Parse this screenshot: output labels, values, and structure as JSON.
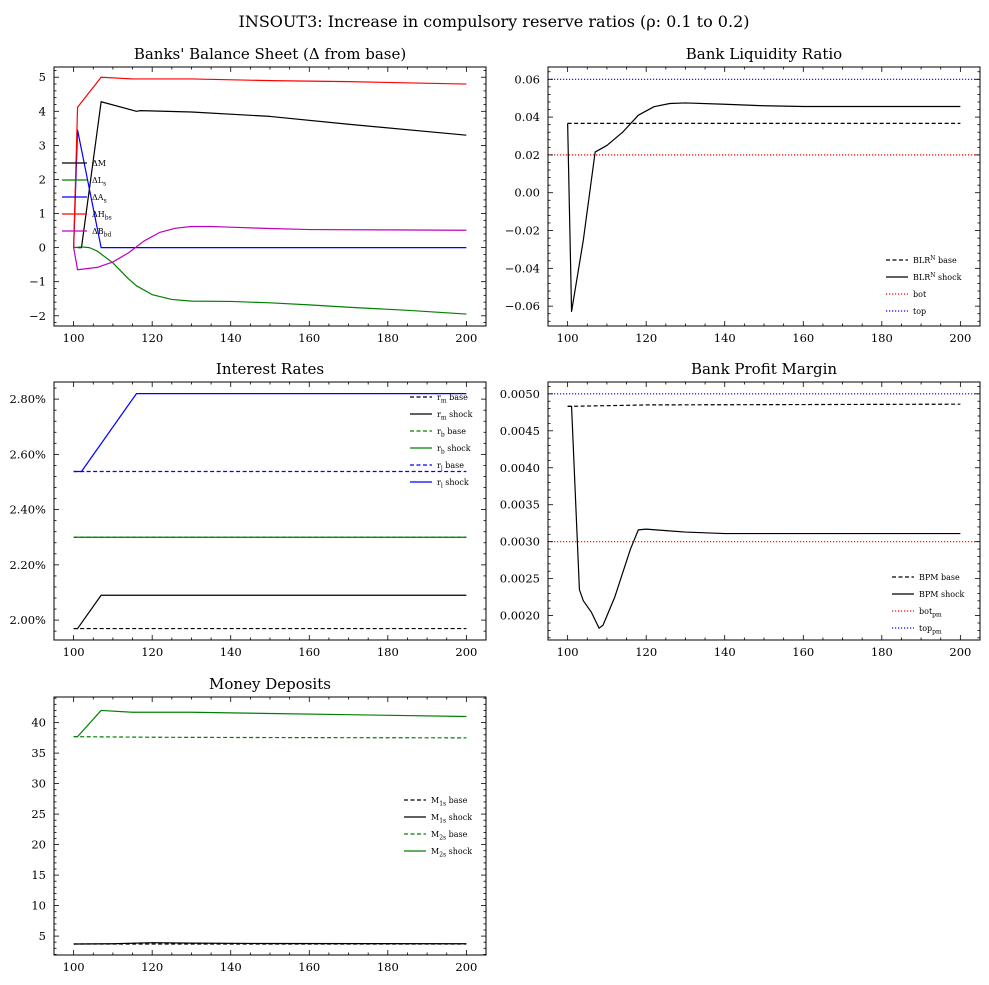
{
  "figure": {
    "suptitle": "INSOUT3: Increase in compulsory reserve ratios (ρ: 0.1 to 0.2)"
  },
  "chart_data": [
    {
      "id": "balance",
      "type": "line",
      "title": "Banks' Balance Sheet (Δ from base)",
      "xlim": [
        95,
        205
      ],
      "ylim": [
        -2.3,
        5.3
      ],
      "xticks": [
        100,
        120,
        140,
        160,
        180,
        200
      ],
      "yticks": [
        -2,
        -1,
        0,
        1,
        2,
        3,
        4,
        5
      ],
      "ytick_labels": [
        "−2",
        "−1",
        "0",
        "1",
        "2",
        "3",
        "4",
        "5"
      ],
      "legend": "left",
      "series": [
        {
          "name": "ΔM",
          "color": "#000000",
          "dash": "solid",
          "points": [
            [
              101,
              0
            ],
            [
              102,
              0
            ],
            [
              107,
              4.28
            ],
            [
              116,
              4.0
            ],
            [
              117,
              4.02
            ],
            [
              130,
              3.98
            ],
            [
              150,
              3.85
            ],
            [
              170,
              3.62
            ],
            [
              200,
              3.3
            ]
          ]
        },
        {
          "name": "ΔL_s",
          "color": "#008000",
          "dash": "solid",
          "points": [
            [
              100,
              0
            ],
            [
              102,
              0.02
            ],
            [
              104,
              0
            ],
            [
              106,
              -0.1
            ],
            [
              110,
              -0.45
            ],
            [
              114,
              -0.92
            ],
            [
              116,
              -1.12
            ],
            [
              120,
              -1.38
            ],
            [
              125,
              -1.52
            ],
            [
              130,
              -1.57
            ],
            [
              140,
              -1.58
            ],
            [
              150,
              -1.62
            ],
            [
              160,
              -1.68
            ],
            [
              170,
              -1.75
            ],
            [
              185,
              -1.84
            ],
            [
              200,
              -1.95
            ]
          ]
        },
        {
          "name": "ΔA_s",
          "color": "#0000ff",
          "dash": "solid",
          "points": [
            [
              100,
              0
            ],
            [
              101,
              3.45
            ],
            [
              107,
              0
            ],
            [
              200,
              0
            ]
          ]
        },
        {
          "name": "ΔH_bs",
          "color": "#ff0000",
          "dash": "solid",
          "points": [
            [
              100,
              0
            ],
            [
              101,
              4.12
            ],
            [
              107,
              5.0
            ],
            [
              115,
              4.95
            ],
            [
              130,
              4.95
            ],
            [
              150,
              4.9
            ],
            [
              170,
              4.87
            ],
            [
              200,
              4.8
            ]
          ]
        },
        {
          "name": "ΔB_bd",
          "color": "#bf00bf",
          "dash": "solid",
          "points": [
            [
              100,
              0
            ],
            [
              101,
              -0.65
            ],
            [
              106,
              -0.58
            ],
            [
              110,
              -0.42
            ],
            [
              114,
              -0.15
            ],
            [
              118,
              0.2
            ],
            [
              122,
              0.45
            ],
            [
              126,
              0.57
            ],
            [
              130,
              0.62
            ],
            [
              135,
              0.62
            ],
            [
              140,
              0.6
            ],
            [
              150,
              0.56
            ],
            [
              160,
              0.53
            ],
            [
              180,
              0.52
            ],
            [
              200,
              0.51
            ]
          ]
        }
      ]
    },
    {
      "id": "liquidity",
      "type": "line",
      "title": "Bank Liquidity Ratio",
      "xlim": [
        95,
        205
      ],
      "ylim": [
        -0.0705,
        0.0665
      ],
      "xticks": [
        100,
        120,
        140,
        160,
        180,
        200
      ],
      "yticks": [
        -0.06,
        -0.04,
        -0.02,
        0.0,
        0.02,
        0.04,
        0.06
      ],
      "ytick_labels": [
        "−0.06",
        "−0.04",
        "−0.02",
        "0.00",
        "0.02",
        "0.04",
        "0.06"
      ],
      "legend": "bottom-right",
      "series": [
        {
          "name": "BLR^N base",
          "color": "#000000",
          "dash": "dashed",
          "points": [
            [
              100,
              0.0367
            ],
            [
              200,
              0.0367
            ]
          ]
        },
        {
          "name": "BLR^N shock",
          "color": "#000000",
          "dash": "solid",
          "points": [
            [
              100,
              0.0367
            ],
            [
              101,
              -0.0628
            ],
            [
              104,
              -0.025
            ],
            [
              107,
              0.0215
            ],
            [
              110,
              0.025
            ],
            [
              114,
              0.032
            ],
            [
              118,
              0.041
            ],
            [
              122,
              0.0455
            ],
            [
              126,
              0.0472
            ],
            [
              130,
              0.0475
            ],
            [
              140,
              0.0468
            ],
            [
              150,
              0.046
            ],
            [
              160,
              0.0456
            ],
            [
              200,
              0.0456
            ]
          ]
        },
        {
          "name": "bot",
          "color": "#ff0000",
          "dash": "dotted",
          "points": [
            [
              95,
              0.02
            ],
            [
              205,
              0.02
            ]
          ]
        },
        {
          "name": "top",
          "color": "#0000ff",
          "dash": "dotted",
          "points": [
            [
              95,
              0.06
            ],
            [
              205,
              0.06
            ]
          ]
        }
      ]
    },
    {
      "id": "rates",
      "type": "line",
      "title": "Interest Rates",
      "xlim": [
        95,
        205
      ],
      "ylim": [
        0.01928,
        0.02862
      ],
      "xticks": [
        100,
        120,
        140,
        160,
        180,
        200
      ],
      "yticks": [
        0.02,
        0.022,
        0.024,
        0.026,
        0.028
      ],
      "ytick_labels": [
        "2.00%",
        "2.20%",
        "2.40%",
        "2.60%",
        "2.80%"
      ],
      "legend": "top-right",
      "series": [
        {
          "name": "r_m base",
          "color": "#000000",
          "dash": "dashed",
          "points": [
            [
              100,
              0.019695
            ],
            [
              200,
              0.019695
            ]
          ]
        },
        {
          "name": "r_m shock",
          "color": "#000000",
          "dash": "solid",
          "points": [
            [
              100,
              0.019695
            ],
            [
              101,
              0.019695
            ],
            [
              107,
              0.0209
            ],
            [
              200,
              0.0209
            ]
          ]
        },
        {
          "name": "r_b base",
          "color": "#008000",
          "dash": "dashed",
          "points": [
            [
              100,
              0.023
            ],
            [
              200,
              0.023
            ]
          ]
        },
        {
          "name": "r_b shock",
          "color": "#008000",
          "dash": "solid",
          "points": [
            [
              100,
              0.023
            ],
            [
              200,
              0.023
            ]
          ]
        },
        {
          "name": "r_l base",
          "color": "#0000ff",
          "dash": "dashed",
          "points": [
            [
              100,
              0.02538
            ],
            [
              200,
              0.02538
            ]
          ]
        },
        {
          "name": "r_l shock",
          "color": "#0000ff",
          "dash": "solid",
          "points": [
            [
              100,
              0.02538
            ],
            [
              102,
              0.02538
            ],
            [
              116,
              0.0282
            ],
            [
              200,
              0.0282
            ]
          ]
        }
      ]
    },
    {
      "id": "profit",
      "type": "line",
      "title": "Bank Profit Margin",
      "xlim": [
        95,
        205
      ],
      "ylim": [
        0.00167,
        0.00516
      ],
      "xticks": [
        100,
        120,
        140,
        160,
        180,
        200
      ],
      "yticks": [
        0.002,
        0.0025,
        0.003,
        0.0035,
        0.004,
        0.0045,
        0.005
      ],
      "ytick_labels": [
        "0.0020",
        "0.0025",
        "0.0030",
        "0.0035",
        "0.0040",
        "0.0045",
        "0.0050"
      ],
      "legend": "bottom-right",
      "series": [
        {
          "name": "BPM base",
          "color": "#000000",
          "dash": "dashed",
          "points": [
            [
              100,
              0.00483
            ],
            [
              120,
              0.00485
            ],
            [
              200,
              0.00486
            ]
          ]
        },
        {
          "name": "BPM shock",
          "color": "#000000",
          "dash": "solid",
          "points": [
            [
              100,
              0.00483
            ],
            [
              101,
              0.00483
            ],
            [
              103,
              0.00235
            ],
            [
              104,
              0.0022
            ],
            [
              106,
              0.00205
            ],
            [
              108,
              0.00183
            ],
            [
              109,
              0.00187
            ],
            [
              112,
              0.00225
            ],
            [
              116,
              0.0029
            ],
            [
              118,
              0.00316
            ],
            [
              120,
              0.00317
            ],
            [
              125,
              0.00315
            ],
            [
              130,
              0.00313
            ],
            [
              140,
              0.00311
            ],
            [
              160,
              0.00311
            ],
            [
              200,
              0.00311
            ]
          ]
        },
        {
          "name": "bot_pm",
          "color": "#ff0000",
          "dash": "dotted",
          "points": [
            [
              95,
              0.003
            ],
            [
              205,
              0.003
            ]
          ]
        },
        {
          "name": "top_pm",
          "color": "#0000ff",
          "dash": "dotted",
          "points": [
            [
              95,
              0.005
            ],
            [
              205,
              0.005
            ]
          ]
        }
      ]
    },
    {
      "id": "money",
      "type": "line",
      "title": "Money Deposits",
      "xlim": [
        95,
        205
      ],
      "ylim": [
        1.9,
        44.2
      ],
      "xticks": [
        100,
        120,
        140,
        160,
        180,
        200
      ],
      "yticks": [
        5,
        10,
        15,
        20,
        25,
        30,
        35,
        40
      ],
      "ytick_labels": [
        "5",
        "10",
        "15",
        "20",
        "25",
        "30",
        "35",
        "40"
      ],
      "legend": "right",
      "series": [
        {
          "name": "M_1s base",
          "color": "#000000",
          "dash": "dashed",
          "points": [
            [
              100,
              3.7
            ],
            [
              200,
              3.7
            ]
          ]
        },
        {
          "name": "M_1s shock",
          "color": "#000000",
          "dash": "solid",
          "points": [
            [
              100,
              3.7
            ],
            [
              110,
              3.75
            ],
            [
              120,
              3.92
            ],
            [
              130,
              3.85
            ],
            [
              150,
              3.78
            ],
            [
              200,
              3.75
            ]
          ]
        },
        {
          "name": "M_2s base",
          "color": "#008000",
          "dash": "dashed",
          "points": [
            [
              100,
              37.7
            ],
            [
              120,
              37.6
            ],
            [
              150,
              37.55
            ],
            [
              200,
              37.5
            ]
          ]
        },
        {
          "name": "M_2s shock",
          "color": "#008000",
          "dash": "solid",
          "points": [
            [
              100,
              37.7
            ],
            [
              101,
              37.7
            ],
            [
              107,
              42.0
            ],
            [
              115,
              41.7
            ],
            [
              130,
              41.7
            ],
            [
              150,
              41.5
            ],
            [
              170,
              41.3
            ],
            [
              200,
              41.0
            ]
          ]
        }
      ]
    }
  ]
}
